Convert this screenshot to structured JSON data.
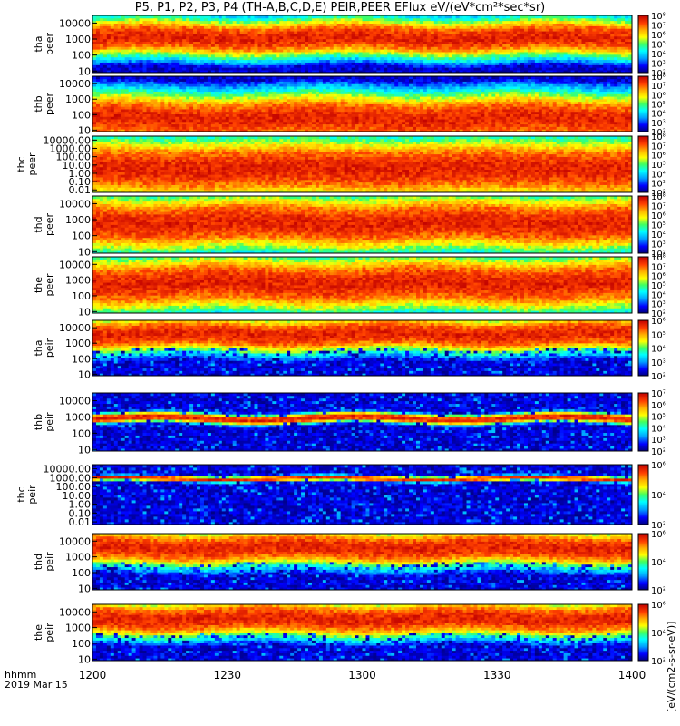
{
  "title": "P5, P1, P2, P3, P4 (TH-A,B,C,D,E) PEIR,PEER EFlux eV/(eV*cm²*sec*sr)",
  "x_axis": {
    "ticks": [
      "1200",
      "1230",
      "1300",
      "1330",
      "1400"
    ],
    "label_line1": "hhmm",
    "label_line2": "2019 Mar 15"
  },
  "colorbar_label": "[eV/(cm2-s-sr-eV)]",
  "chart_data": [
    {
      "type": "heatmap",
      "probe": "tha",
      "species": "peer",
      "ylabel": [
        "tha",
        "peer"
      ],
      "yticks": [
        "10",
        "100",
        "1000",
        "10000"
      ],
      "ylim": [
        8,
        30000
      ],
      "yscale": "log",
      "cbar_ticks": [
        "10⁸",
        "10⁷",
        "10⁶",
        "10⁵",
        "10⁴",
        "10³",
        "10²"
      ],
      "cbar_range": [
        100,
        100000000
      ],
      "core_energy_range": [
        300,
        5000
      ],
      "peak_flux": 100000000
    },
    {
      "type": "heatmap",
      "probe": "thb",
      "species": "peer",
      "ylabel": [
        "thb",
        "peer"
      ],
      "yticks": [
        "10",
        "100",
        "1000",
        "10000"
      ],
      "ylim": [
        8,
        30000
      ],
      "yscale": "log",
      "cbar_ticks": [
        "10⁸",
        "10⁷",
        "10⁶",
        "10⁵",
        "10⁴",
        "10³",
        "10²"
      ],
      "cbar_range": [
        100,
        100000000
      ],
      "core_energy_range": [
        8,
        400
      ],
      "peak_flux": 100000000
    },
    {
      "type": "heatmap",
      "probe": "thc",
      "species": "peer",
      "ylabel": [
        "thc",
        "peer"
      ],
      "yticks": [
        "0.01",
        "0.10",
        "1.00",
        "10.00",
        "100.00",
        "1000.00",
        "10000.00"
      ],
      "ylim": [
        0.005,
        30000
      ],
      "yscale": "log",
      "cbar_ticks": [
        "10⁸",
        "10⁷",
        "10⁶",
        "10⁵",
        "10⁴",
        "10³",
        "10²"
      ],
      "cbar_range": [
        100,
        100000000
      ],
      "core_energy_range": [
        0.05,
        300
      ],
      "peak_flux": 100000000
    },
    {
      "type": "heatmap",
      "probe": "thd",
      "species": "peer",
      "ylabel": [
        "thd",
        "peer"
      ],
      "yticks": [
        "10",
        "100",
        "1000",
        "10000"
      ],
      "ylim": [
        8,
        30000
      ],
      "yscale": "log",
      "cbar_ticks": [
        "10⁸",
        "10⁷",
        "10⁶",
        "10⁵",
        "10⁴",
        "10³",
        "10²"
      ],
      "cbar_range": [
        100,
        100000000
      ],
      "core_energy_range": [
        80,
        5000
      ],
      "peak_flux": 100000000
    },
    {
      "type": "heatmap",
      "probe": "the",
      "species": "peer",
      "ylabel": [
        "the",
        "peer"
      ],
      "yticks": [
        "10",
        "100",
        "1000",
        "10000"
      ],
      "ylim": [
        8,
        30000
      ],
      "yscale": "log",
      "cbar_ticks": [
        "10⁸",
        "10⁷",
        "10⁶",
        "10⁵",
        "10⁴",
        "10³",
        "10²"
      ],
      "cbar_range": [
        100,
        100000000
      ],
      "core_energy_range": [
        80,
        5000
      ],
      "peak_flux": 100000000
    },
    {
      "type": "heatmap",
      "probe": "tha",
      "species": "peir",
      "ylabel": [
        "tha",
        "peir"
      ],
      "yticks": [
        "10",
        "100",
        "1000",
        "10000"
      ],
      "ylim": [
        8,
        30000
      ],
      "yscale": "log",
      "cbar_ticks": [
        "10⁶",
        "10⁵",
        "10⁴",
        "10³",
        "10²"
      ],
      "cbar_range": [
        100,
        1000000
      ],
      "core_energy_range": [
        1000,
        15000
      ],
      "peak_flux": 1000000
    },
    {
      "type": "heatmap",
      "probe": "thb",
      "species": "peir",
      "ylabel": [
        "thb",
        "peir"
      ],
      "yticks": [
        "10",
        "100",
        "1000",
        "10000"
      ],
      "ylim": [
        8,
        30000
      ],
      "yscale": "log",
      "cbar_ticks": [
        "10⁷",
        "10⁶",
        "10⁵",
        "10⁴",
        "10³",
        "10²"
      ],
      "cbar_range": [
        100,
        10000000
      ],
      "core_energy_range": [
        600,
        1200
      ],
      "peak_flux": 10000000
    },
    {
      "type": "heatmap",
      "probe": "thc",
      "species": "peir",
      "ylabel": [
        "thc",
        "peir"
      ],
      "yticks": [
        "0.01",
        "0.10",
        "1.00",
        "10.00",
        "100.00",
        "1000.00",
        "10000.00"
      ],
      "ylim": [
        0.005,
        30000
      ],
      "yscale": "log",
      "cbar_ticks": [
        "10⁶",
        "10⁴",
        "10²"
      ],
      "cbar_range": [
        100,
        1000000
      ],
      "core_energy_range": [
        600,
        1200
      ],
      "peak_flux": 1000000
    },
    {
      "type": "heatmap",
      "probe": "thd",
      "species": "peir",
      "ylabel": [
        "thd",
        "peir"
      ],
      "yticks": [
        "10",
        "100",
        "1000",
        "10000"
      ],
      "ylim": [
        8,
        30000
      ],
      "yscale": "log",
      "cbar_ticks": [
        "10⁶",
        "10⁴",
        "10²"
      ],
      "cbar_range": [
        100,
        1000000
      ],
      "core_energy_range": [
        1000,
        15000
      ],
      "peak_flux": 1000000
    },
    {
      "type": "heatmap",
      "probe": "the",
      "species": "peir",
      "ylabel": [
        "the",
        "peir"
      ],
      "yticks": [
        "10",
        "100",
        "1000",
        "10000"
      ],
      "ylim": [
        8,
        30000
      ],
      "yscale": "log",
      "cbar_ticks": [
        "10⁶",
        "10⁴",
        "10²"
      ],
      "cbar_range": [
        100,
        1000000
      ],
      "core_energy_range": [
        1000,
        15000
      ],
      "peak_flux": 1000000
    }
  ]
}
